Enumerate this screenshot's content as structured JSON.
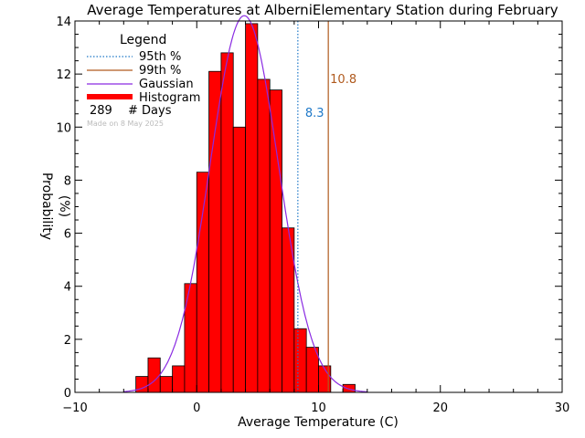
{
  "chart_data": {
    "type": "bar",
    "title": "Average Temperatures at AlberniElementary Station during February",
    "xlabel": "Average Temperature (C)",
    "ylabel_line1": "Probability",
    "ylabel_line2": "(%)",
    "xlim": [
      -10,
      30
    ],
    "ylim": [
      0,
      14
    ],
    "xticks": [
      -10,
      0,
      10,
      20,
      30
    ],
    "xtick_labels": [
      "−10",
      "0",
      "10",
      "20",
      "30"
    ],
    "yticks": [
      0,
      2,
      4,
      6,
      8,
      10,
      12,
      14
    ],
    "bin_width": 1,
    "bins": [
      {
        "x0": -5,
        "value": 0.6
      },
      {
        "x0": -4,
        "value": 1.3
      },
      {
        "x0": -3,
        "value": 0.6
      },
      {
        "x0": -2,
        "value": 1.0
      },
      {
        "x0": -1,
        "value": 4.1
      },
      {
        "x0": 0,
        "value": 8.3
      },
      {
        "x0": 1,
        "value": 12.1
      },
      {
        "x0": 2,
        "value": 12.8
      },
      {
        "x0": 3,
        "value": 10.0
      },
      {
        "x0": 4,
        "value": 13.9
      },
      {
        "x0": 5,
        "value": 11.8
      },
      {
        "x0": 6,
        "value": 11.4
      },
      {
        "x0": 7,
        "value": 6.2
      },
      {
        "x0": 8,
        "value": 2.4
      },
      {
        "x0": 9,
        "value": 1.7
      },
      {
        "x0": 10,
        "value": 1.0
      },
      {
        "x0": 12,
        "value": 0.3
      }
    ],
    "gaussian": {
      "mean": 3.9,
      "sd": 2.8,
      "peak": 14.2
    },
    "percentiles": [
      {
        "name": "95th %",
        "value": 8.3,
        "label": "8.3",
        "color": "#1e78c8",
        "style": "dotted"
      },
      {
        "name": "99th %",
        "value": 10.8,
        "label": "10.8",
        "color": "#b05a1e",
        "style": "solid"
      }
    ],
    "colors": {
      "histogram": "#ff0000",
      "gaussian": "#8a2be2",
      "axes": "#000000"
    },
    "legend": {
      "title": "Legend",
      "placement": "top-left",
      "items": [
        "95th %",
        "99th %",
        "Gaussian",
        "Histogram"
      ],
      "days_count": "289",
      "days_label": "# Days"
    },
    "made_on": "Made on 8 May 2025"
  }
}
